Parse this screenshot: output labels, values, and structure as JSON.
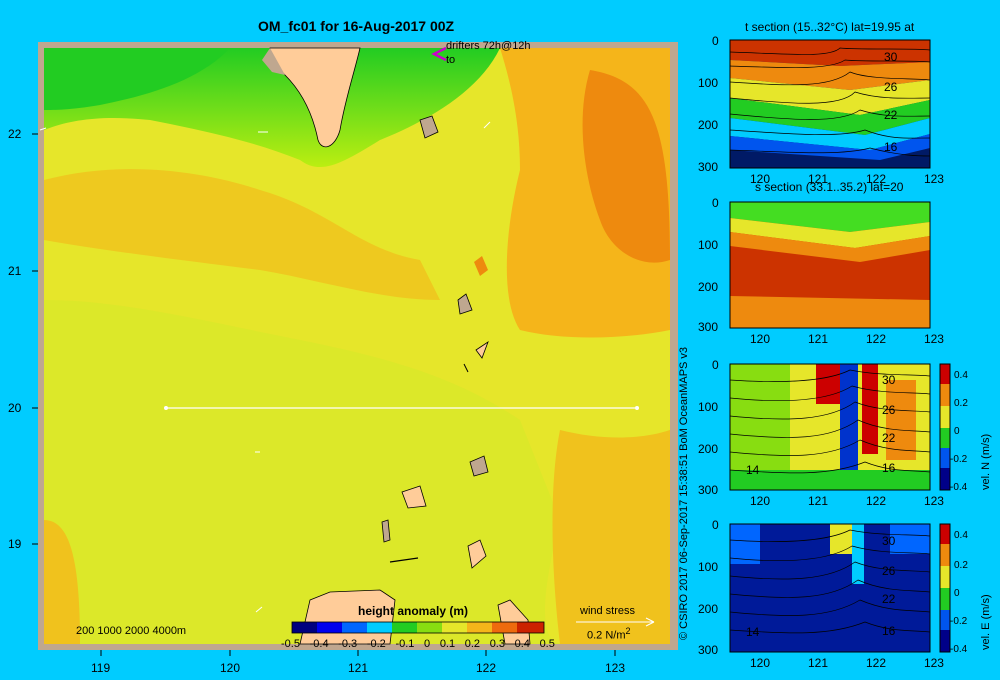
{
  "main": {
    "title": "OM_fc01 for 16-Aug-2017 00Z",
    "drifters_label": "drifters 72h@12h",
    "drifters_to": "to",
    "lat_ticks": [
      "22",
      "21",
      "20",
      "19"
    ],
    "lon_ticks": [
      "119",
      "120",
      "121",
      "122",
      "123"
    ],
    "depth_legend": "200  1000  2000  4000m",
    "colorbar_title": "height anomaly (m)",
    "colorbar_ticks": [
      "-0.5",
      "-0.4",
      "-0.3",
      "-0.2",
      "-0.1",
      "0",
      "0.1",
      "0.2",
      "0.3",
      "0.4",
      "0.5"
    ],
    "wind_title": "wind stress",
    "wind_value": "0.2 N/m",
    "wind_sup": "2"
  },
  "credit": "© CSIRO 2017   06-Sep-2017 15:38:51 BoM OceanMAPS v3",
  "panels": [
    {
      "title": "t section (15..32°C) lat=19.95 at",
      "depth_ticks": [
        "0",
        "100",
        "200",
        "300"
      ],
      "lon_ticks": [
        "120",
        "121",
        "122",
        "123"
      ],
      "contour_labels": [
        "30",
        "26",
        "22",
        "16"
      ]
    },
    {
      "title": "s section (33.1..35.2) lat=20",
      "depth_ticks": [
        "0",
        "100",
        "200",
        "300"
      ],
      "lon_ticks": [
        "120",
        "121",
        "122",
        "123"
      ]
    },
    {
      "title": "",
      "depth_ticks": [
        "0",
        "100",
        "200",
        "300"
      ],
      "lon_ticks": [
        "120",
        "121",
        "122",
        "123"
      ],
      "contour_labels": [
        "30",
        "26",
        "22",
        "16",
        "14"
      ],
      "cb_ticks": [
        "0.4",
        "0.2",
        "0",
        "-0.2",
        "-0.4"
      ],
      "cb_label": "vel. N (m/s)"
    },
    {
      "title": "",
      "depth_ticks": [
        "0",
        "100",
        "200",
        "300"
      ],
      "lon_ticks": [
        "120",
        "121",
        "122",
        "123"
      ],
      "contour_labels": [
        "30",
        "26",
        "22",
        "16",
        "14"
      ],
      "cb_ticks": [
        "0.4",
        "0.2",
        "0",
        "-0.2",
        "-0.4"
      ],
      "cb_label": "vel. E (m/s)"
    }
  ]
}
